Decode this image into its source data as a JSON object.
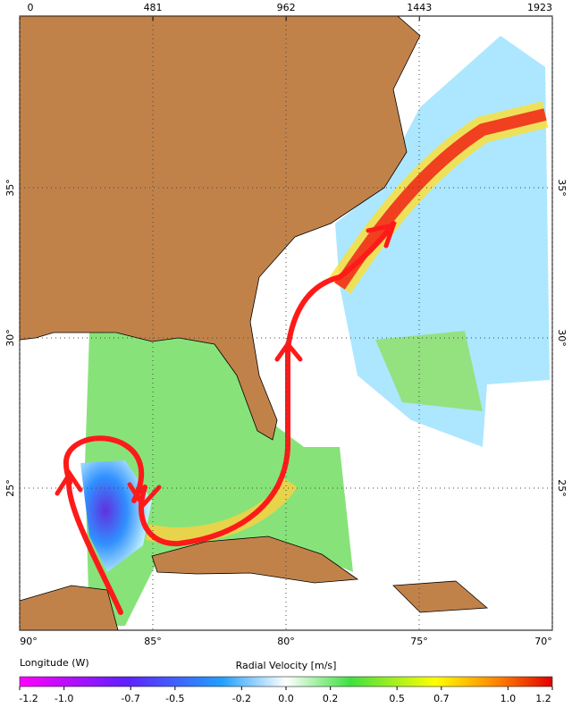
{
  "top_axis": {
    "ticks": [
      0,
      481,
      962,
      1443,
      1923
    ],
    "range": [
      0,
      1923
    ]
  },
  "latitude_labels": [
    {
      "value": 35,
      "label": "35°"
    },
    {
      "value": 30,
      "label": "30°"
    },
    {
      "value": 25,
      "label": "25°"
    }
  ],
  "longitude_labels": [
    {
      "value": 90,
      "label": "90°"
    },
    {
      "value": 85,
      "label": "85°"
    },
    {
      "value": 80,
      "label": "80°"
    },
    {
      "value": 75,
      "label": "75°"
    },
    {
      "value": 70,
      "label": "70°"
    }
  ],
  "x_label": "Longitude (W)",
  "colorbar": {
    "title": "Radial Velocity [m/s]",
    "range": [
      -1.2,
      1.2
    ],
    "ticks": [
      -1.2,
      {
        "value": -1.0,
        "label": "-1.0"
      },
      -0.7,
      -0.5,
      -0.2,
      {
        "value": 0.0,
        "label": "0.0"
      },
      0.2,
      0.5,
      0.7,
      {
        "value": 1.0,
        "label": "1.0"
      },
      1.2
    ]
  }
}
